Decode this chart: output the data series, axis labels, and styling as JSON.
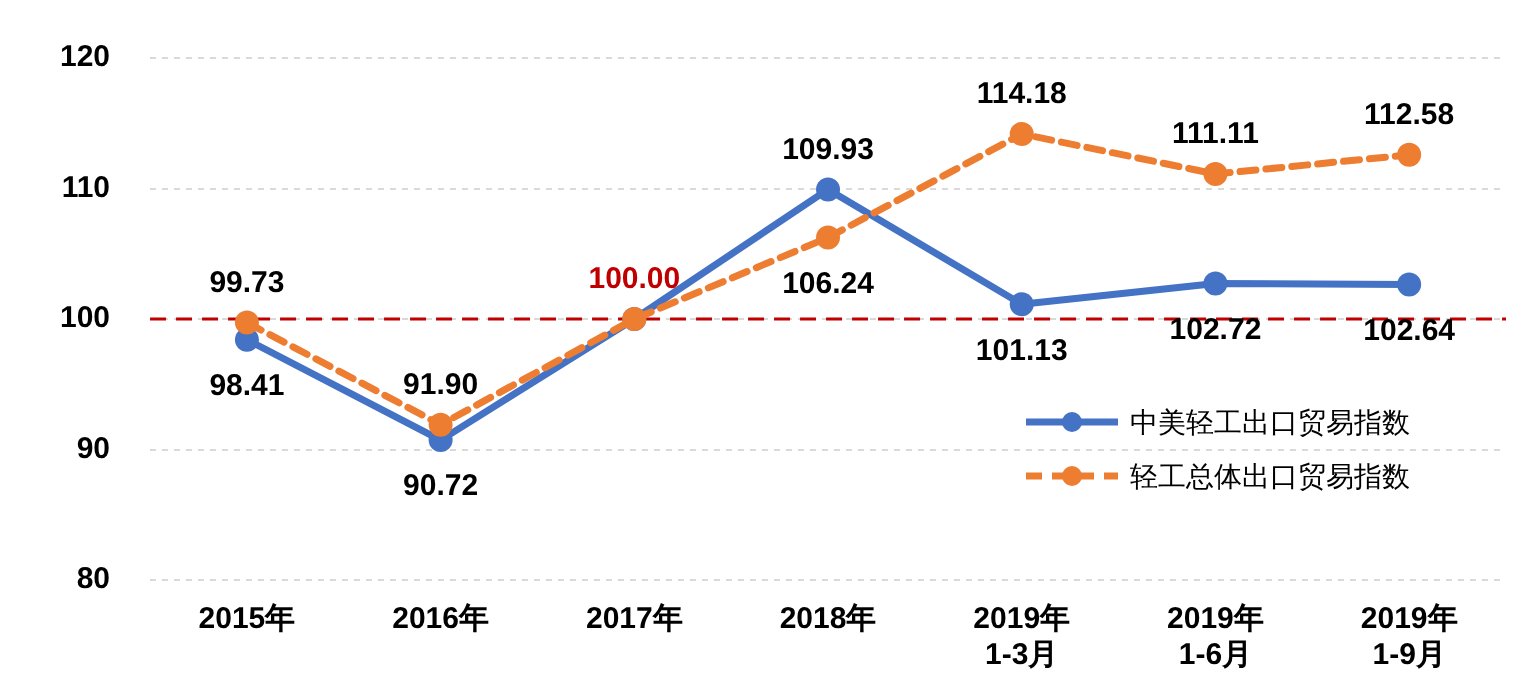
{
  "chart_data": {
    "type": "line",
    "categories": [
      "2015年",
      "2016年",
      "2017年",
      "2018年",
      "2019年\n1-3月",
      "2019年\n1-6月",
      "2019年\n1-9月"
    ],
    "series": [
      {
        "name": "中美轻工出口贸易指数",
        "color": "#4472c4",
        "line_style": "solid",
        "values": [
          98.41,
          90.72,
          100.0,
          109.93,
          101.13,
          102.72,
          102.64
        ],
        "value_labels": [
          "98.41",
          "90.72",
          null,
          "109.93",
          "101.13",
          "102.72",
          "102.64"
        ]
      },
      {
        "name": "轻工总体出口贸易指数",
        "color": "#ed7d31",
        "line_style": "dashed",
        "values": [
          99.73,
          91.9,
          100.0,
          106.24,
          114.18,
          111.11,
          112.58
        ],
        "value_labels": [
          "99.73",
          "91.90",
          "100.00",
          "106.24",
          "114.18",
          "111.11",
          "112.58"
        ]
      }
    ],
    "ylim": [
      80,
      120
    ],
    "yticks": [
      80,
      90,
      100,
      110,
      120
    ],
    "grid": "y",
    "marker": "circle",
    "legend": "bottom right",
    "ref_lines": [
      {
        "axis": "y",
        "value": 100,
        "color": "#c00000",
        "line_style": "dashed"
      }
    ]
  }
}
